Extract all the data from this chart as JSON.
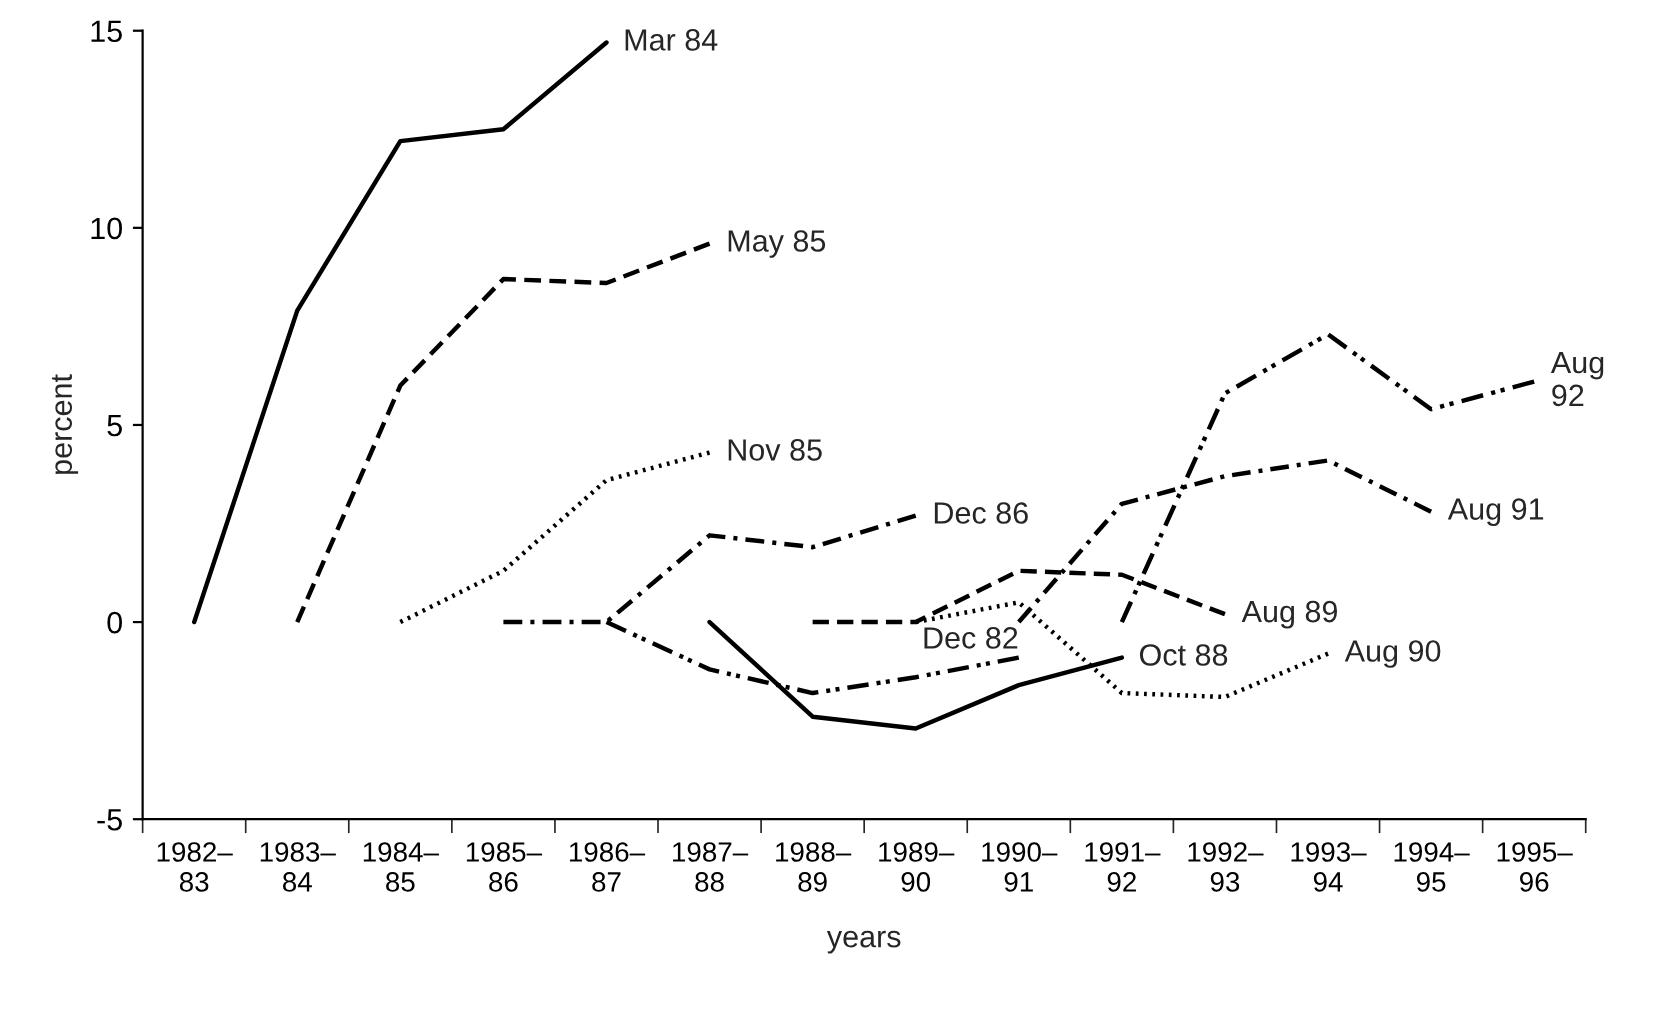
{
  "chart_data": {
    "type": "line",
    "xlabel": "years",
    "ylabel": "percent",
    "categories": [
      "1982–\n83",
      "1983–\n84",
      "1984–\n85",
      "1985–\n86",
      "1986–\n87",
      "1987–\n88",
      "1988–\n89",
      "1989–\n90",
      "1990–\n91",
      "1991–\n92",
      "1992–\n93",
      "1993–\n94",
      "1994–\n95",
      "1995–\n96"
    ],
    "ylim": [
      -5,
      15
    ],
    "yticks": [
      -5,
      0,
      5,
      10,
      15
    ],
    "grid": false,
    "legend": false,
    "marker": "none",
    "series": [
      {
        "name": "Mar 84",
        "color": "#000000",
        "line_style": "solid",
        "values": [
          0,
          7.9,
          12.2,
          12.5,
          14.7,
          null,
          null,
          null,
          null,
          null,
          null,
          null,
          null,
          null
        ]
      },
      {
        "name": "May 85",
        "color": "#000000",
        "line_style": "dashed",
        "values": [
          null,
          0,
          6.0,
          8.7,
          8.6,
          9.6,
          null,
          null,
          null,
          null,
          null,
          null,
          null,
          null
        ]
      },
      {
        "name": "Nov 85",
        "color": "#000000",
        "line_style": "dotted",
        "values": [
          null,
          null,
          0,
          1.3,
          3.6,
          4.3,
          null,
          null,
          null,
          null,
          null,
          null,
          null,
          null
        ]
      },
      {
        "name": "Dec 86",
        "color": "#000000",
        "line_style": "dashdot",
        "values": [
          null,
          null,
          null,
          0,
          0,
          2.2,
          1.9,
          2.7,
          null,
          null,
          null,
          null,
          null,
          null
        ]
      },
      {
        "name": "Dec 82",
        "color": "#000000",
        "line_style": "dashdotdot",
        "values": [
          null,
          null,
          null,
          null,
          0,
          -1.2,
          -1.8,
          -1.4,
          -0.9,
          null,
          null,
          null,
          null,
          null
        ]
      },
      {
        "name": "Oct 88",
        "color": "#000000",
        "line_style": "solid",
        "values": [
          null,
          null,
          null,
          null,
          null,
          0,
          -2.4,
          -2.7,
          -1.6,
          -0.9,
          null,
          null,
          null,
          null
        ]
      },
      {
        "name": "Aug 89",
        "color": "#000000",
        "line_style": "dashed",
        "values": [
          null,
          null,
          null,
          null,
          null,
          null,
          0,
          0,
          1.3,
          1.2,
          0.2,
          null,
          null,
          null
        ]
      },
      {
        "name": "Aug 90",
        "color": "#000000",
        "line_style": "dotted",
        "values": [
          null,
          null,
          null,
          null,
          null,
          null,
          null,
          0,
          0.5,
          -1.8,
          -1.9,
          -0.8,
          null,
          null
        ]
      },
      {
        "name": "Aug 91",
        "color": "#000000",
        "line_style": "dashdot",
        "values": [
          null,
          null,
          null,
          null,
          null,
          null,
          null,
          null,
          0,
          3.0,
          3.7,
          4.1,
          2.8,
          null
        ]
      },
      {
        "name": "Aug\n92",
        "color": "#000000",
        "line_style": "dashdotdot",
        "values": [
          null,
          null,
          null,
          null,
          null,
          null,
          null,
          null,
          null,
          0,
          5.8,
          7.3,
          5.4,
          6.1
        ]
      }
    ]
  }
}
